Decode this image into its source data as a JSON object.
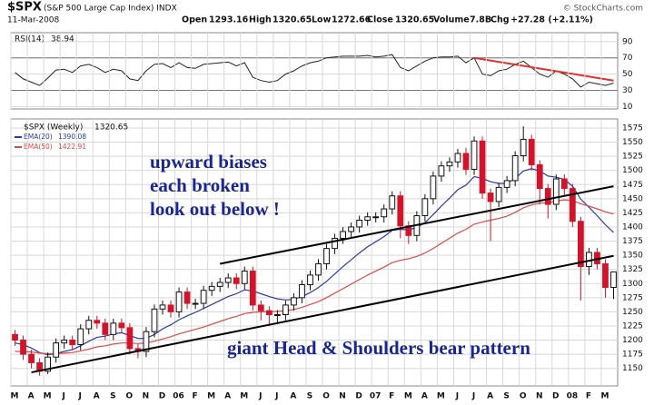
{
  "header": {
    "symbol": "$SPX",
    "name": "(S&P 500 Large Cap Index) INDX",
    "source": "© StockCharts.com",
    "date": "11-Mar-2008",
    "labels": [
      "Open",
      "High",
      "Low",
      "Close",
      "Volume",
      "Chg"
    ],
    "volume": "7.8B",
    "change": "+27.28 (+2.11%)"
  },
  "chart_data": [
    {
      "type": "line",
      "name": "RSI(14)",
      "color": "#222222",
      "values": [
        52,
        44,
        40,
        36,
        45,
        55,
        56,
        52,
        60,
        62,
        58,
        52,
        56,
        54,
        44,
        42,
        54,
        62,
        63,
        58,
        64,
        58,
        57,
        62,
        63,
        64,
        65,
        60,
        64,
        46,
        42,
        40,
        42,
        50,
        54,
        60,
        64,
        66,
        70,
        71,
        72,
        72,
        72,
        73,
        71,
        72,
        74,
        58,
        54,
        60,
        66,
        70,
        71,
        71,
        72,
        64,
        70,
        50,
        48,
        54,
        56,
        62,
        66,
        58,
        50,
        46,
        54,
        50,
        44,
        34,
        40,
        38,
        36,
        38.94
      ],
      "ylim": [
        7,
        101
      ],
      "yticks": [
        10,
        30,
        50,
        70,
        90
      ],
      "levels": [
        30,
        70
      ],
      "grid": true,
      "trendlines": [
        {
          "start": 56,
          "end": 73,
          "from": 70,
          "to": 42,
          "color": "#e03030"
        }
      ]
    },
    {
      "type": "candlestick",
      "name": "$SPX (Weekly)",
      "up_color": "#111111",
      "down_color": "#d0142c",
      "categories": [
        "M",
        null,
        "A",
        null,
        "M",
        null,
        "J",
        null,
        "J",
        null,
        "A",
        null,
        "S",
        null,
        "O",
        null,
        "N",
        null,
        "D",
        null,
        "06",
        null,
        "F",
        null,
        "M",
        null,
        "A",
        null,
        "M",
        null,
        "J",
        null,
        "J",
        null,
        "A",
        null,
        "S",
        null,
        "O",
        null,
        "N",
        null,
        "D",
        null,
        "07",
        null,
        "F",
        null,
        "M",
        null,
        "A",
        null,
        "M",
        null,
        "J",
        null,
        "J",
        null,
        "A",
        null,
        "S",
        null,
        "O",
        null,
        "N",
        null,
        "D",
        null,
        "08",
        null,
        "F",
        null,
        "M",
        null
      ],
      "open": [
        1210,
        1200,
        1175,
        1160,
        1145,
        1170,
        1195,
        1200,
        1192,
        1220,
        1235,
        1230,
        1210,
        1230,
        1222,
        1185,
        1180,
        1215,
        1255,
        1262,
        1250,
        1285,
        1265,
        1265,
        1288,
        1295,
        1302,
        1310,
        1300,
        1322,
        1262,
        1252,
        1245,
        1245,
        1262,
        1275,
        1298,
        1315,
        1335,
        1362,
        1380,
        1392,
        1400,
        1412,
        1418,
        1418,
        1432,
        1455,
        1402,
        1385,
        1420,
        1450,
        1490,
        1508,
        1515,
        1530,
        1502,
        1552,
        1460,
        1445,
        1470,
        1482,
        1526,
        1555,
        1510,
        1468,
        1440,
        1485,
        1468,
        1410,
        1330,
        1355,
        1335,
        1293.16
      ],
      "high": [
        1218,
        1208,
        1183,
        1168,
        1178,
        1203,
        1208,
        1208,
        1228,
        1243,
        1243,
        1238,
        1238,
        1238,
        1230,
        1193,
        1223,
        1263,
        1270,
        1270,
        1293,
        1293,
        1273,
        1296,
        1303,
        1310,
        1318,
        1318,
        1330,
        1330,
        1270,
        1260,
        1253,
        1270,
        1283,
        1306,
        1323,
        1343,
        1370,
        1388,
        1400,
        1408,
        1420,
        1426,
        1426,
        1440,
        1463,
        1463,
        1410,
        1428,
        1458,
        1498,
        1516,
        1523,
        1538,
        1540,
        1560,
        1560,
        1468,
        1478,
        1490,
        1534,
        1578,
        1563,
        1518,
        1476,
        1493,
        1493,
        1476,
        1418,
        1363,
        1363,
        1343,
        1320.65
      ],
      "low": [
        1190,
        1165,
        1150,
        1137,
        1140,
        1160,
        1185,
        1182,
        1182,
        1210,
        1220,
        1200,
        1200,
        1212,
        1175,
        1168,
        1170,
        1205,
        1245,
        1240,
        1240,
        1255,
        1255,
        1255,
        1278,
        1285,
        1292,
        1290,
        1290,
        1252,
        1235,
        1225,
        1228,
        1235,
        1252,
        1265,
        1288,
        1305,
        1325,
        1352,
        1370,
        1382,
        1390,
        1402,
        1408,
        1408,
        1422,
        1380,
        1370,
        1375,
        1410,
        1440,
        1480,
        1498,
        1505,
        1492,
        1492,
        1450,
        1375,
        1435,
        1460,
        1472,
        1516,
        1500,
        1440,
        1415,
        1430,
        1455,
        1400,
        1270,
        1315,
        1325,
        1275,
        1272.66
      ],
      "close": [
        1200,
        1175,
        1160,
        1145,
        1170,
        1195,
        1200,
        1192,
        1220,
        1235,
        1230,
        1210,
        1230,
        1222,
        1185,
        1180,
        1215,
        1255,
        1262,
        1250,
        1285,
        1265,
        1265,
        1288,
        1295,
        1302,
        1310,
        1300,
        1322,
        1262,
        1252,
        1245,
        1245,
        1262,
        1275,
        1298,
        1315,
        1335,
        1362,
        1380,
        1392,
        1400,
        1412,
        1418,
        1418,
        1432,
        1455,
        1402,
        1385,
        1420,
        1450,
        1490,
        1508,
        1515,
        1530,
        1502,
        1552,
        1460,
        1445,
        1470,
        1482,
        1526,
        1555,
        1510,
        1468,
        1440,
        1485,
        1468,
        1410,
        1330,
        1355,
        1335,
        1293.16,
        1320.65
      ],
      "series": [
        {
          "name": "EMA(20)",
          "color": "#2b3aa8",
          "values": [
            1195,
            1192,
            1186,
            1178,
            1174,
            1176,
            1180,
            1183,
            1190,
            1198,
            1205,
            1207,
            1211,
            1213,
            1208,
            1203,
            1203,
            1210,
            1220,
            1227,
            1236,
            1243,
            1249,
            1256,
            1263,
            1270,
            1277,
            1282,
            1289,
            1287,
            1282,
            1277,
            1273,
            1271,
            1272,
            1277,
            1284,
            1293,
            1304,
            1317,
            1330,
            1342,
            1354,
            1365,
            1374,
            1383,
            1394,
            1396,
            1395,
            1399,
            1408,
            1422,
            1437,
            1451,
            1466,
            1474,
            1489,
            1486,
            1480,
            1477,
            1477,
            1486,
            1499,
            1503,
            1499,
            1490,
            1488,
            1484,
            1472,
            1449,
            1435,
            1420,
            1404,
            1390.08
          ]
        },
        {
          "name": "EMA(50)",
          "color": "#e04848",
          "values": [
            1180,
            1180,
            1179,
            1177,
            1176,
            1176,
            1177,
            1178,
            1181,
            1184,
            1188,
            1190,
            1193,
            1195,
            1195,
            1194,
            1195,
            1198,
            1202,
            1206,
            1211,
            1215,
            1219,
            1223,
            1228,
            1233,
            1238,
            1242,
            1247,
            1249,
            1250,
            1250,
            1251,
            1252,
            1254,
            1258,
            1263,
            1268,
            1275,
            1283,
            1291,
            1299,
            1307,
            1315,
            1322,
            1329,
            1337,
            1341,
            1344,
            1348,
            1354,
            1362,
            1371,
            1380,
            1389,
            1396,
            1405,
            1409,
            1412,
            1415,
            1419,
            1426,
            1434,
            1439,
            1442,
            1443,
            1446,
            1448,
            1447,
            1441,
            1437,
            1432,
            1427,
            1422.91
          ]
        }
      ],
      "ylim": [
        1119,
        1591
      ],
      "yticks": [
        1150,
        1175,
        1200,
        1225,
        1250,
        1275,
        1300,
        1325,
        1350,
        1375,
        1400,
        1425,
        1450,
        1475,
        1500,
        1525,
        1550,
        1575
      ],
      "grid": true,
      "trendlines": [
        {
          "start": 2,
          "end": 73,
          "from": 1143,
          "to": 1349,
          "color": "#000000"
        },
        {
          "start": 25,
          "end": 73,
          "from": 1335,
          "to": 1472,
          "color": "#000000"
        }
      ],
      "annotations": [
        "upward biases",
        "each broken",
        "look out below !",
        "giant Head & Shoulders bear pattern"
      ]
    }
  ]
}
